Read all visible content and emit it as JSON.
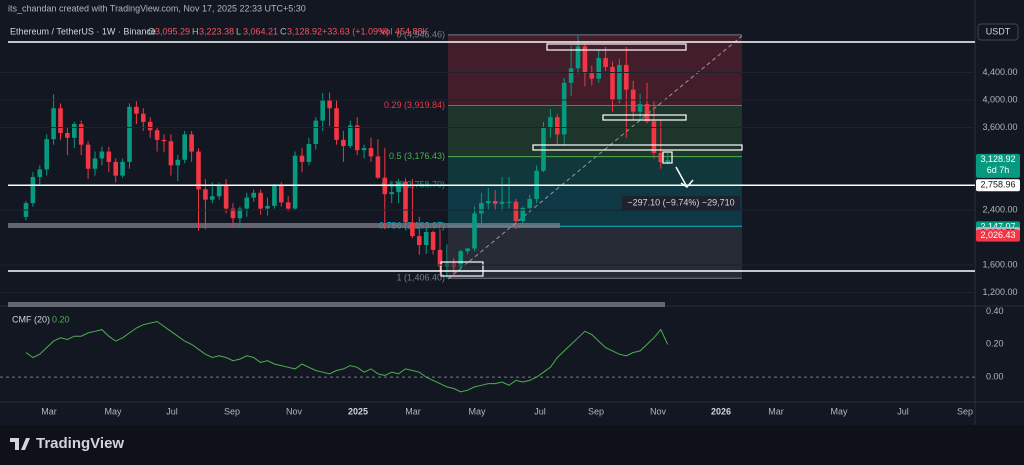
{
  "header": {
    "credit": "its_chandan created with TradingView.com, Nov 17, 2025 22:33 UTC+5:30",
    "symbol": "Ethereum / TetherUS · 1W · Binance",
    "ohlc": [
      {
        "key": "O",
        "value": "3,095.29"
      },
      {
        "key": "H",
        "value": "3,223.38"
      },
      {
        "key": "L",
        "value": "3,064.21"
      },
      {
        "key": "C",
        "value": "3,128.92"
      }
    ],
    "change": "+33.63 (+1.09%)",
    "volume": "Vol 454.88K"
  },
  "currency": "USDT",
  "brand": "TradingView",
  "chart_data": {
    "type": "candlestick",
    "open": [
      2300,
      2500,
      2880,
      2990,
      3430,
      3880,
      3520,
      3450,
      3650,
      3350,
      3000,
      3150,
      3250,
      3100,
      2900,
      3100,
      3900,
      3800,
      3680,
      3560,
      3420,
      3400,
      3050,
      3130,
      3500,
      3250,
      2700,
      2550,
      2600,
      2750,
      2420,
      2280,
      2420,
      2580,
      2650,
      2420,
      2460,
      2750,
      2510,
      2420,
      3190,
      3100,
      3360,
      3700,
      4000,
      3880,
      3420,
      3330,
      3630,
      3270,
      3300,
      3180,
      2870,
      2630,
      2660,
      2810,
      2220,
      2020,
      1890,
      2080,
      1820,
      1580,
      1620,
      1580,
      1800,
      1840,
      2350,
      2500,
      2530,
      2490,
      2520,
      2520,
      2240,
      2430,
      2560,
      2970,
      3600,
      3750,
      3500,
      4250,
      4460,
      4780,
      4390,
      4310,
      4610,
      4480,
      4000,
      4510,
      4150,
      3830,
      3940,
      3690,
      3230,
      3095.29
    ],
    "high": [
      2530,
      2950,
      3050,
      3500,
      4080,
      3950,
      3600,
      3680,
      3700,
      3400,
      3250,
      3320,
      3320,
      3150,
      3150,
      3950,
      3980,
      3880,
      3750,
      3600,
      3500,
      3500,
      3200,
      3550,
      3550,
      3300,
      2850,
      2800,
      2800,
      2850,
      2500,
      2450,
      2650,
      2700,
      2700,
      2580,
      2780,
      2800,
      2600,
      3250,
      3300,
      3450,
      3750,
      4100,
      4110,
      3990,
      3550,
      3700,
      3750,
      3350,
      3450,
      3430,
      3300,
      2800,
      2850,
      2860,
      2850,
      2300,
      2150,
      2100,
      2120,
      1900,
      1700,
      1820,
      1850,
      2450,
      2650,
      2720,
      2690,
      2880,
      2880,
      2560,
      2450,
      2620,
      3050,
      3680,
      3870,
      3800,
      4320,
      4790,
      4950,
      4820,
      4500,
      4720,
      4770,
      4560,
      4600,
      4770,
      4280,
      4090,
      4250,
      3980,
      3700,
      3223.38
    ],
    "low": [
      2250,
      2450,
      2750,
      2900,
      3350,
      3420,
      3200,
      3300,
      3200,
      2850,
      2900,
      3050,
      2950,
      2800,
      2870,
      3000,
      3650,
      3550,
      3450,
      3250,
      3240,
      2900,
      2820,
      3080,
      3100,
      2100,
      2120,
      2500,
      2550,
      2350,
      2150,
      2150,
      2300,
      2520,
      2330,
      2320,
      2420,
      2450,
      2380,
      2400,
      2950,
      3050,
      3280,
      3550,
      3620,
      3350,
      3100,
      3300,
      3200,
      3150,
      3100,
      2850,
      2120,
      2500,
      2500,
      2150,
      1990,
      1750,
      1760,
      1750,
      1480,
      1406.4,
      1450,
      1540,
      1760,
      1800,
      2180,
      2400,
      2400,
      2380,
      2420,
      2120,
      2200,
      2400,
      2500,
      2950,
      3450,
      3350,
      3350,
      4060,
      4380,
      4200,
      4210,
      4250,
      4420,
      3830,
      3950,
      3450,
      3700,
      3700,
      3660,
      3150,
      3000,
      3064.21
    ],
    "close": [
      2500,
      2880,
      2990,
      3430,
      3880,
      3520,
      3450,
      3650,
      3350,
      3000,
      3150,
      3250,
      3100,
      2900,
      3100,
      3900,
      3800,
      3680,
      3560,
      3420,
      3400,
      3050,
      3130,
      3500,
      3250,
      2700,
      2550,
      2600,
      2750,
      2420,
      2280,
      2420,
      2580,
      2650,
      2420,
      2460,
      2750,
      2510,
      2420,
      3190,
      3100,
      3360,
      3700,
      4000,
      3880,
      3420,
      3330,
      3630,
      3270,
      3300,
      3180,
      2870,
      2630,
      2660,
      2810,
      2220,
      2020,
      1890,
      2080,
      1820,
      1580,
      1620,
      1580,
      1800,
      1840,
      2350,
      2500,
      2530,
      2490,
      2520,
      2520,
      2240,
      2430,
      2560,
      2970,
      3600,
      3750,
      3500,
      4250,
      4460,
      4780,
      4390,
      4310,
      4610,
      4480,
      4000,
      4510,
      4150,
      3830,
      3940,
      3690,
      3230,
      3095.29,
      3128.92
    ],
    "up_color": "#089981",
    "down_color": "#f23645",
    "ylim": [
      1018,
      5047
    ],
    "yticks": [
      {
        "value": 1200,
        "label": "1,200.00"
      },
      {
        "value": 1600,
        "label": "1,600.00"
      },
      {
        "value": 2400,
        "label": "2,400.00"
      },
      {
        "value": 3600,
        "label": "3,600.00"
      },
      {
        "value": 4000,
        "label": "4,000.00"
      },
      {
        "value": 4400,
        "label": "4,400.00"
      }
    ],
    "time_labels": [
      "Mar",
      "May",
      "Jul",
      "Sep",
      "Nov",
      "2025",
      "Mar",
      "May",
      "Jul",
      "Sep",
      "Nov",
      "2026",
      "Mar",
      "May",
      "Jul",
      "Sep"
    ],
    "fib": [
      {
        "value": 4946.46,
        "label": "0 (4,946.46)"
      },
      {
        "value": 3919.84,
        "label": "0.29 (3,919.84)"
      },
      {
        "value": 3176.43,
        "label": "0.5 (3,176.43)"
      },
      {
        "value": 2758.7,
        "label": "0.618(2,758.70)"
      },
      {
        "value": 2163.97,
        "label": "0.786 (2,163.97)"
      },
      {
        "value": 1406.4,
        "label": "1 (1,406.40)"
      }
    ],
    "hlines": [
      4844,
      2758.96,
      1513
    ],
    "price_tags": [
      {
        "value": 3128.92,
        "label": "3,128.92",
        "sub": "6d 7h",
        "color": "#089981"
      },
      {
        "value": 2758.96,
        "label": "2,758.96",
        "color": "#ffffff"
      },
      {
        "value": 2147.07,
        "label": "2,147.07",
        "color": "#089981"
      },
      {
        "value": 2064.55,
        "label": "2,064.55",
        "color": "#b2b5be"
      },
      {
        "value": 2026.43,
        "label": "2,026.43",
        "color": "#f23645"
      }
    ],
    "measure": "−297.10 (−9.74%) −29,710",
    "cmf": {
      "name": "CMF (20)",
      "last": "0.20",
      "color": "#4caf50",
      "values": [
        0.15,
        0.12,
        0.14,
        0.18,
        0.22,
        0.24,
        0.23,
        0.25,
        0.25,
        0.27,
        0.28,
        0.29,
        0.25,
        0.22,
        0.24,
        0.27,
        0.3,
        0.32,
        0.33,
        0.34,
        0.31,
        0.28,
        0.25,
        0.22,
        0.2,
        0.17,
        0.14,
        0.12,
        0.13,
        0.12,
        0.1,
        0.11,
        0.13,
        0.12,
        0.09,
        0.1,
        0.08,
        0.07,
        0.06,
        0.05,
        0.08,
        0.06,
        0.04,
        0.03,
        0.02,
        0.04,
        0.05,
        0.07,
        0.06,
        0.03,
        0.05,
        0.02,
        0.01,
        0.03,
        0.02,
        0.05,
        0.04,
        0.03,
        0.0,
        -0.02,
        -0.04,
        -0.06,
        -0.07,
        -0.09,
        -0.08,
        -0.06,
        -0.05,
        -0.04,
        -0.04,
        -0.03,
        -0.05,
        -0.02,
        -0.03,
        -0.02,
        0.0,
        0.03,
        0.06,
        0.12,
        0.16,
        0.2,
        0.24,
        0.28,
        0.26,
        0.22,
        0.18,
        0.16,
        0.14,
        0.13,
        0.15,
        0.16,
        0.2,
        0.24,
        0.29,
        0.2
      ],
      "ylim": [
        -0.14,
        0.41
      ],
      "yticks": [
        {
          "value": 0,
          "label": "0.00"
        },
        {
          "value": 0.2,
          "label": "0.20"
        },
        {
          "value": 0.4,
          "label": "0.40"
        }
      ]
    }
  }
}
